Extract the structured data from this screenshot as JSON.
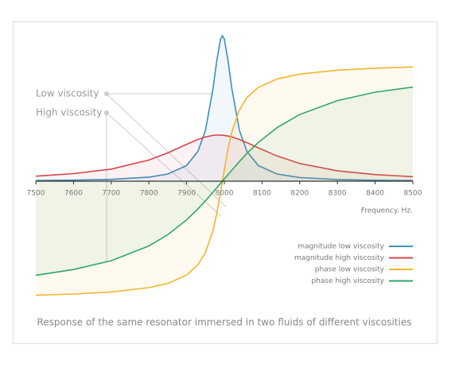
{
  "chart_data": {
    "type": "line",
    "x": [
      7500,
      7600,
      7700,
      7800,
      7850,
      7900,
      7930,
      7950,
      7970,
      7980,
      7990,
      7995,
      8000,
      8010,
      8020,
      8040,
      8060,
      8090,
      8140,
      8200,
      8300,
      8400,
      8500
    ],
    "series": [
      {
        "name": "magnitude low viscosity",
        "color": "#3a8fc0",
        "values": [
          0.8,
          1.3,
          2.3,
          5.1,
          9.0,
          19.7,
          37.5,
          64,
          116.5,
          151.6,
          178.9,
          183,
          178.9,
          151.6,
          116.5,
          64,
          37.5,
          19.7,
          9.0,
          4.6,
          2.1,
          1.2,
          0.8
        ]
      },
      {
        "name": "magnitude high viscosity",
        "color": "#d9434e",
        "values": [
          6.3,
          9.5,
          15.2,
          26.6,
          35.6,
          46.4,
          52.5,
          55.7,
          57.6,
          58,
          58,
          57.8,
          57.6,
          56.8,
          55.7,
          52.5,
          48.5,
          42,
          31.7,
          22.3,
          13.1,
          8.3,
          5.7
        ]
      },
      {
        "name": "phase low viscosity",
        "color": "#f2b630",
        "values": [
          -143.6,
          -142,
          -139.4,
          -134,
          -128.7,
          -118.1,
          -105.2,
          -89.6,
          -62.1,
          -40.8,
          -14.4,
          0,
          14.4,
          40.8,
          62.1,
          89.6,
          105.2,
          118.1,
          128.7,
          134.7,
          139.7,
          142.2,
          143.8
        ]
      },
      {
        "name": "phase high viscosity",
        "color": "#2fa866",
        "values": [
          -118.4,
          -111.2,
          -100.1,
          -81.5,
          -67.4,
          -48.7,
          -34.9,
          -24.7,
          -13.9,
          -8.4,
          -2.8,
          0,
          2.8,
          8.4,
          13.9,
          24.7,
          34.9,
          48.7,
          67.4,
          83.9,
          101.4,
          112,
          118.4
        ]
      }
    ],
    "xlim": [
      7500,
      8500
    ],
    "xticks": [
      7500,
      7600,
      7700,
      7800,
      7900,
      8000,
      8100,
      8200,
      8300,
      8400,
      8500
    ],
    "ylim": [
      -172,
      198
    ],
    "x_label": "Frequency. Hz.",
    "annotations": [
      "Low viscosity",
      "High viscosity"
    ],
    "caption": "Response of the same resonator immersed in two fluids of different viscosities",
    "legend": "right"
  }
}
